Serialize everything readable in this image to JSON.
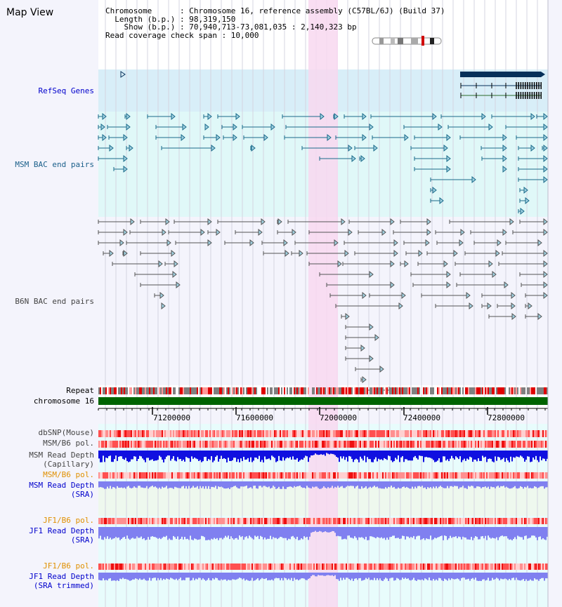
{
  "page": {
    "title": "Map View",
    "info_lines": [
      "Chromosome      : Chromosome 16, reference assembly (C57BL/6J) (Build 37)",
      "  Length (b.p.) : 98,319,150",
      "    Show (b.p.) : 70,940,713-73,081,035 : 2,140,323 bp",
      "Read coverage check span : 10,000"
    ]
  },
  "tracks": {
    "refseq": "RefSeq Genes",
    "msm_bac": "MSM BAC end pairs",
    "b6n_bac": "B6N BAC end pairs",
    "repeat": "Repeat",
    "chromosome": "chromosome 16",
    "dbsnp": "dbSNP(Mouse)",
    "msm_b6_pol": "MSM/B6 pol.",
    "msm_depth_cap_1": "MSM Read Depth",
    "msm_depth_cap_2": "(Capillary)",
    "msm_b6_pol_sra": "MSM/B6 pol.",
    "msm_depth_sra_1": "MSM Read Depth",
    "msm_depth_sra_2": "(SRA)",
    "jf1_b6_pol": "JF1/B6 pol.",
    "jf1_depth_sra_1": "JF1 Read Depth",
    "jf1_depth_sra_2": "(SRA)",
    "jf1_b6_pol_trim": "JF1/B6 pol.",
    "jf1_depth_trim_1": "JF1 Read Depth",
    "jf1_depth_trim_2": "(SRA trimmed)"
  },
  "axis": {
    "ticks": [
      "71200000",
      "71600000",
      "72000000",
      "72400000",
      "72800000"
    ]
  },
  "colors": {
    "highlight": "#f8d8f0",
    "refseq_bg": "#d8eef8",
    "msm_bg": "#e0f8f8",
    "track_bg": "#e8fcfc",
    "gene": "#06305a",
    "msm_feature": "#1a6a8a",
    "b6n_feature": "#555555",
    "chromosome": "#006400",
    "depth_blue": "#1010e0",
    "depth_light": "#8080f0",
    "polymorphism": "#ff4040"
  }
}
